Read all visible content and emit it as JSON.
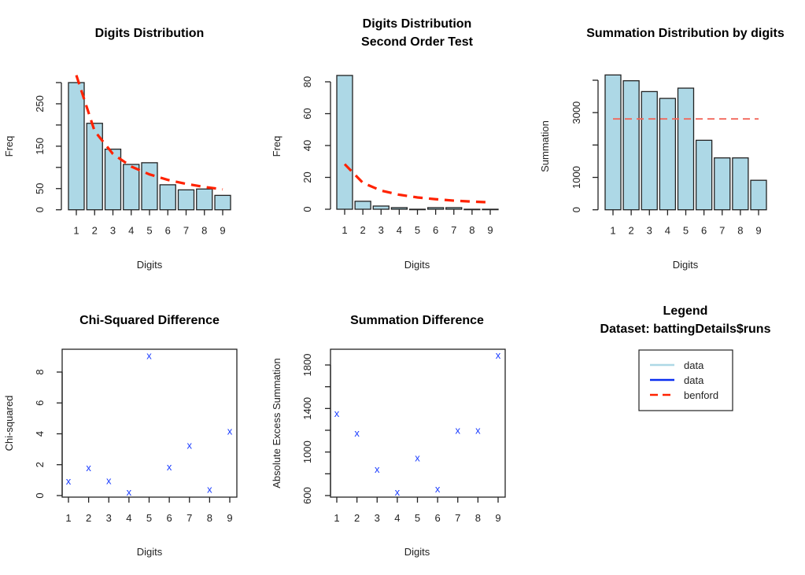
{
  "colors": {
    "bar_fill": "#ADD8E6",
    "benford": "#FF2200",
    "benford_light": "#F2675A",
    "marker": "#1a3cff",
    "data_light": "#ADD8E6",
    "data_dark": "#0A2EF0"
  },
  "chart_data": [
    {
      "id": "digits-distribution",
      "type": "bar",
      "title": "Digits Distribution",
      "xlabel": "Digits",
      "ylabel": "Freq",
      "categories": [
        "1",
        "2",
        "3",
        "4",
        "5",
        "6",
        "7",
        "8",
        "9"
      ],
      "values": [
        300,
        204,
        143,
        107,
        111,
        59,
        47,
        49,
        34
      ],
      "benford": [
        317.3,
        185.6,
        131.7,
        102.1,
        83.5,
        70.5,
        61.1,
        53.9,
        48.2
      ],
      "ylim": [
        0,
        300
      ],
      "yticks": [
        0,
        50,
        100,
        150,
        200,
        250,
        300
      ],
      "ytick_labels": [
        "0",
        "50",
        "",
        "150",
        "",
        "250",
        ""
      ]
    },
    {
      "id": "second-order",
      "type": "bar",
      "title": "Digits Distribution",
      "subtitle": "Second Order Test",
      "xlabel": "Digits",
      "ylabel": "Freq",
      "categories": [
        "1",
        "2",
        "3",
        "4",
        "5",
        "6",
        "7",
        "8",
        "9"
      ],
      "values": [
        84,
        5,
        2,
        1,
        0,
        1,
        1,
        0,
        0
      ],
      "benford": [
        28.3,
        16.6,
        11.7,
        9.1,
        7.4,
        6.3,
        5.4,
        4.8,
        4.3
      ],
      "ylim": [
        0,
        80
      ],
      "yticks": [
        0,
        20,
        40,
        60,
        80
      ],
      "ytick_labels": [
        "0",
        "20",
        "40",
        "60",
        "80"
      ]
    },
    {
      "id": "summation-distribution",
      "type": "bar",
      "title": "Summation Distribution by digits",
      "xlabel": "Digits",
      "ylabel": "Summation",
      "categories": [
        "1",
        "2",
        "3",
        "4",
        "5",
        "6",
        "7",
        "8",
        "9"
      ],
      "values": [
        4163,
        3984,
        3650,
        3439,
        3756,
        2146,
        1602,
        1602,
        911
      ],
      "benford_constant": 2806,
      "ylim": [
        0,
        4000
      ],
      "yticks": [
        0,
        1000,
        2000,
        3000,
        4000
      ],
      "ytick_labels": [
        "0",
        "1000",
        "",
        "3000",
        ""
      ]
    },
    {
      "id": "chi-squared-difference",
      "type": "scatter",
      "title": "Chi-Squared Difference",
      "xlabel": "Digits",
      "ylabel": "Chi-squared",
      "marker": "x",
      "x": [
        1,
        2,
        3,
        4,
        5,
        6,
        7,
        8,
        9
      ],
      "values": [
        0.93,
        1.81,
        0.97,
        0.22,
        9.07,
        1.86,
        3.25,
        0.42,
        4.19
      ],
      "ylim": [
        0,
        9.07
      ],
      "yticks": [
        0,
        2,
        4,
        6,
        8
      ],
      "ytick_labels": [
        "0",
        "2",
        "4",
        "6",
        "8"
      ]
    },
    {
      "id": "summation-difference",
      "type": "scatter",
      "title": "Summation Difference",
      "xlabel": "Digits",
      "ylabel": "Absolute Excess Summation",
      "marker": "x",
      "x": [
        1,
        2,
        3,
        4,
        5,
        6,
        7,
        8,
        9
      ],
      "values": [
        1354,
        1173,
        843,
        631,
        947,
        663,
        1200,
        1200,
        1889
      ],
      "ylim": [
        631,
        1889
      ],
      "yticks": [
        600,
        800,
        1000,
        1200,
        1400,
        1600,
        1800
      ],
      "ytick_labels": [
        "600",
        "",
        "1000",
        "",
        "1400",
        "",
        "1800"
      ]
    }
  ],
  "legend": {
    "title": "Legend",
    "subtitle": "Dataset: battingDetails$runs",
    "position": "bottom-right",
    "items": [
      {
        "label": "data",
        "style": "solid",
        "color_key": "data_light"
      },
      {
        "label": "data",
        "style": "solid",
        "color_key": "data_dark"
      },
      {
        "label": "benford",
        "style": "dashed",
        "color_key": "benford"
      }
    ]
  }
}
